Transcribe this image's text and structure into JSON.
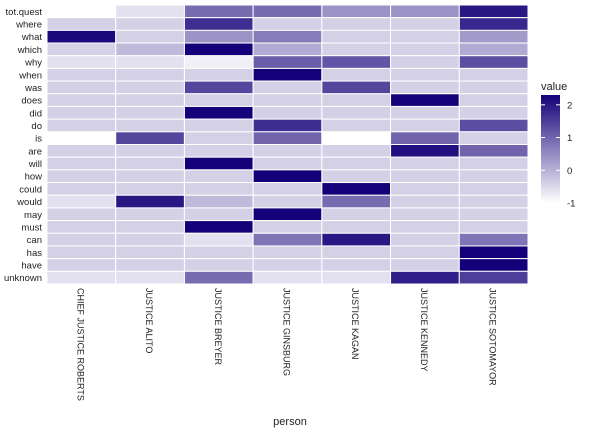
{
  "chart_data": {
    "type": "heatmap",
    "title": "",
    "xlabel": "person",
    "ylabel": "",
    "x": [
      "CHIEF JUSTICE ROBERTS",
      "JUSTICE ALITO",
      "JUSTICE BREYER",
      "JUSTICE GINSBURG",
      "JUSTICE KAGAN",
      "JUSTICE KENNEDY",
      "JUSTICE SOTOMAYOR"
    ],
    "y": [
      "tot.quest",
      "where",
      "what",
      "which",
      "why",
      "when",
      "was",
      "does",
      "did",
      "do",
      "is",
      "are",
      "will",
      "how",
      "could",
      "would",
      "may",
      "must",
      "can",
      "has",
      "have",
      "unknown"
    ],
    "values": [
      [
        -1.0,
        -0.6,
        0.9,
        0.9,
        0.4,
        0.4,
        2.0
      ],
      [
        -0.4,
        -0.4,
        1.7,
        -0.4,
        -0.4,
        -0.4,
        1.8
      ],
      [
        2.2,
        -0.4,
        0.4,
        0.7,
        -0.4,
        -0.4,
        0.3
      ],
      [
        -0.4,
        -0.1,
        2.3,
        0.1,
        -0.4,
        -0.4,
        0.1
      ],
      [
        -0.6,
        -0.6,
        -0.8,
        1.1,
        1.2,
        -0.4,
        1.3
      ],
      [
        -0.4,
        -0.4,
        -0.4,
        2.3,
        -0.4,
        -0.4,
        -0.4
      ],
      [
        -0.4,
        -0.4,
        1.4,
        -0.4,
        1.4,
        -0.4,
        -0.4
      ],
      [
        -0.4,
        -0.4,
        -0.4,
        -0.4,
        -0.4,
        2.3,
        -0.4
      ],
      [
        -0.4,
        -0.4,
        2.3,
        -0.4,
        -0.4,
        -0.4,
        -0.4
      ],
      [
        -0.4,
        -0.4,
        -0.4,
        1.7,
        -0.4,
        -0.4,
        1.3
      ],
      [
        -1.0,
        1.4,
        -0.4,
        1.0,
        -1.0,
        1.0,
        -0.4
      ],
      [
        -0.4,
        -0.4,
        -0.4,
        -0.4,
        -0.4,
        2.1,
        1.0
      ],
      [
        -0.4,
        -0.4,
        2.3,
        -0.4,
        -0.4,
        -0.4,
        -0.4
      ],
      [
        -0.4,
        -0.4,
        -0.4,
        2.3,
        -0.4,
        -0.4,
        -0.4
      ],
      [
        -0.4,
        -0.4,
        -0.4,
        -0.4,
        2.3,
        -0.4,
        -0.4
      ],
      [
        -0.6,
        2.0,
        -0.1,
        -0.4,
        0.9,
        -0.4,
        -0.4
      ],
      [
        -0.4,
        -0.4,
        -0.4,
        2.3,
        -0.4,
        -0.4,
        -0.4
      ],
      [
        -0.4,
        -0.4,
        2.3,
        -0.4,
        -0.4,
        -0.4,
        -0.4
      ],
      [
        -0.4,
        -0.4,
        -0.6,
        0.8,
        2.0,
        -0.4,
        0.8
      ],
      [
        -0.4,
        -0.4,
        -0.4,
        -0.4,
        -0.4,
        -0.4,
        2.3
      ],
      [
        -0.4,
        -0.4,
        -0.4,
        -0.4,
        -0.4,
        -0.4,
        2.3
      ],
      [
        -0.6,
        -0.6,
        0.9,
        -0.6,
        -0.6,
        1.9,
        1.5
      ]
    ],
    "legend": {
      "title": "value",
      "position": "right",
      "ticks": [
        2,
        1,
        0,
        -1
      ],
      "range": [
        -1.0,
        2.3
      ]
    },
    "colors": {
      "low": "#ffffff",
      "high": "#140078",
      "cell_border": "#ffffff"
    },
    "grid": false
  }
}
